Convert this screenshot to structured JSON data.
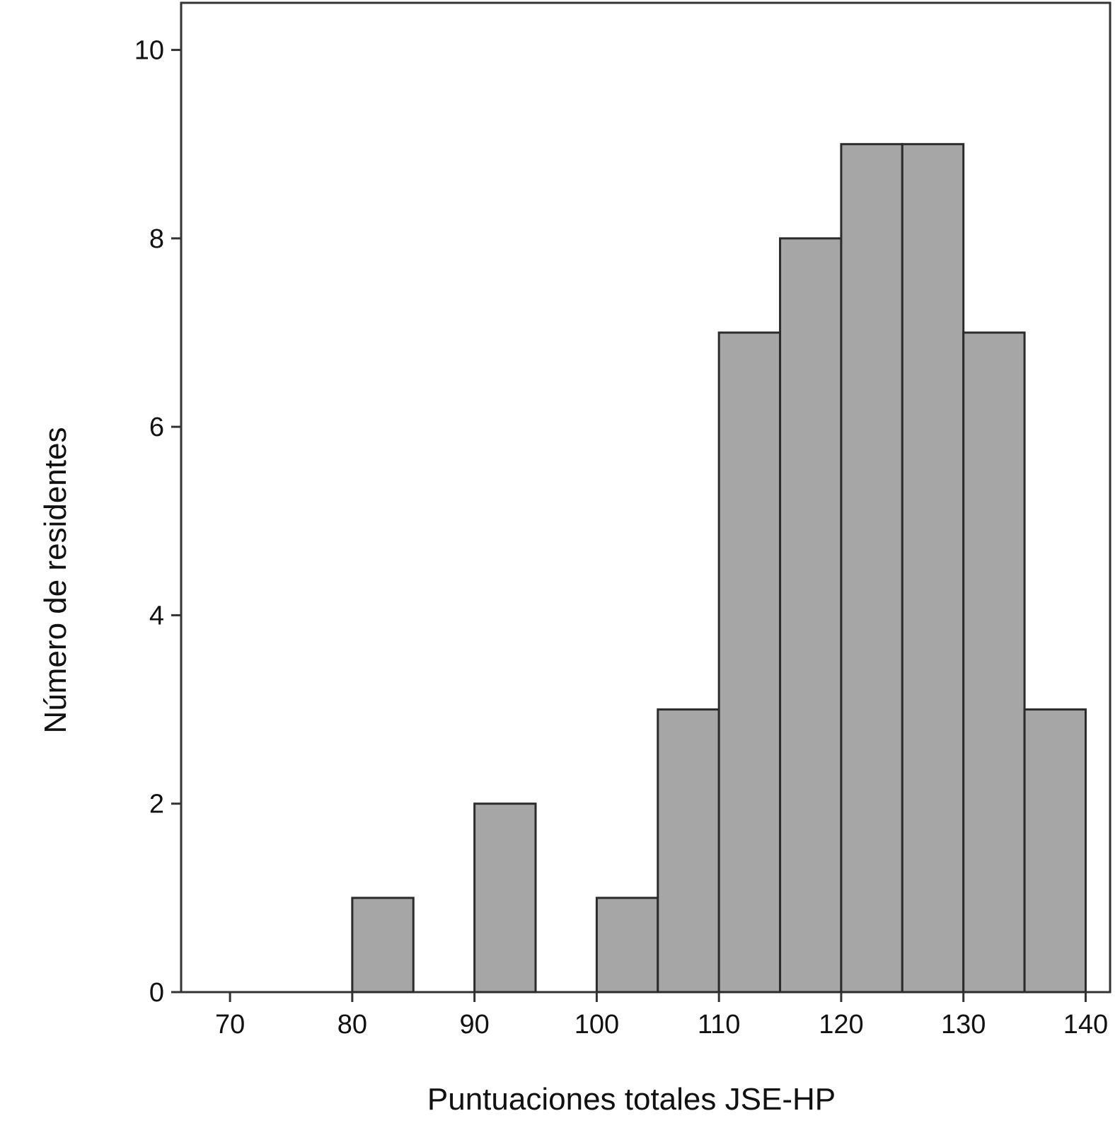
{
  "chart_data": {
    "type": "bar",
    "xlabel": "Puntuaciones totales JSE-HP",
    "ylabel": "Número de residentes",
    "xlim": [
      66,
      142
    ],
    "ylim": [
      0,
      10.5
    ],
    "xticks": [
      70,
      80,
      90,
      100,
      110,
      120,
      130,
      140
    ],
    "yticks": [
      0,
      2,
      4,
      6,
      8,
      10
    ],
    "grid": false,
    "legend": "none",
    "bins": [
      {
        "x0": 80,
        "x1": 85,
        "count": 1
      },
      {
        "x0": 90,
        "x1": 95,
        "count": 2
      },
      {
        "x0": 100,
        "x1": 105,
        "count": 1
      },
      {
        "x0": 105,
        "x1": 110,
        "count": 3
      },
      {
        "x0": 110,
        "x1": 115,
        "count": 7
      },
      {
        "x0": 115,
        "x1": 120,
        "count": 8
      },
      {
        "x0": 120,
        "x1": 125,
        "count": 9
      },
      {
        "x0": 125,
        "x1": 130,
        "count": 9
      },
      {
        "x0": 130,
        "x1": 135,
        "count": 7
      },
      {
        "x0": 135,
        "x1": 140,
        "count": 3
      }
    ],
    "colors": {
      "bar_fill": "#a6a6a6",
      "bar_stroke": "#2b2b2b",
      "axis": "#333333"
    }
  }
}
